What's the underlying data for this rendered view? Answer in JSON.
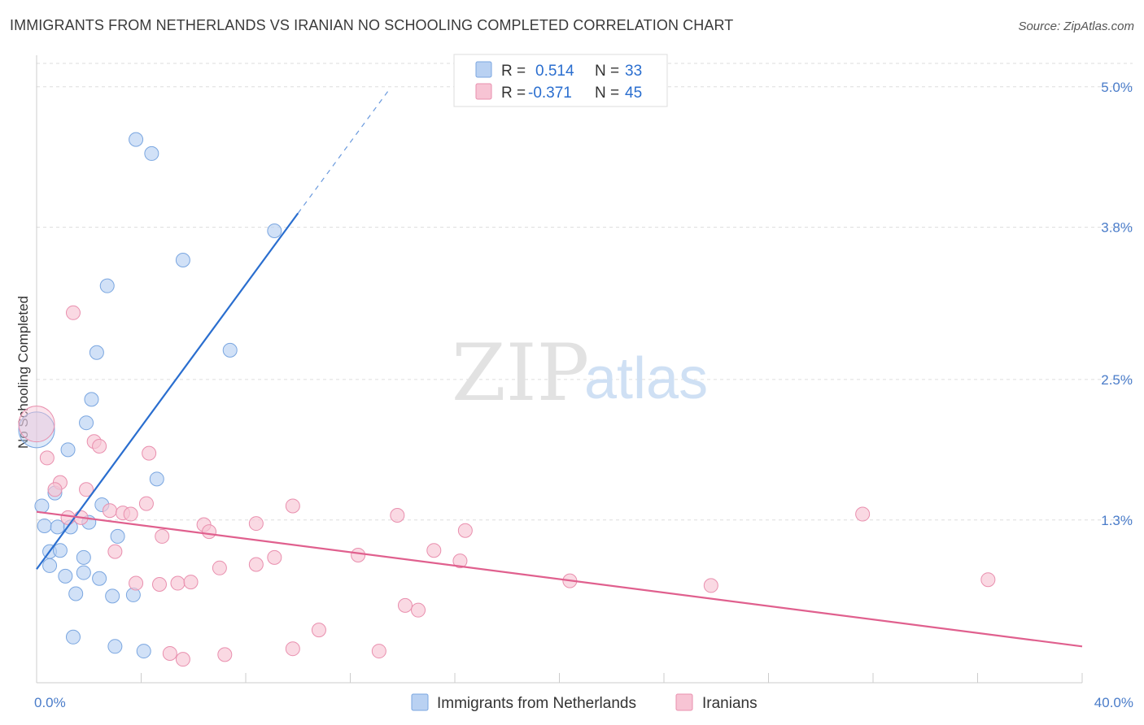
{
  "title": "IMMIGRANTS FROM NETHERLANDS VS IRANIAN NO SCHOOLING COMPLETED CORRELATION CHART",
  "source": "Source: ZipAtlas.com",
  "watermark": {
    "zip": "ZIP",
    "atlas": "atlas"
  },
  "colors": {
    "blue_fill": "#b9d1f2",
    "blue_stroke": "#7aa6e0",
    "blue_line": "#2a6ecf",
    "pink_fill": "#f7c4d4",
    "pink_stroke": "#e98fae",
    "pink_line": "#e0608e",
    "tick_text": "#4a7cc9",
    "grid": "#dddddd"
  },
  "legend": {
    "rows": [
      {
        "series": "blue",
        "r_label": "R =",
        "r_value": "0.514",
        "n_label": "N =",
        "n_value": "33"
      },
      {
        "series": "pink",
        "r_label": "R =",
        "r_value": "-0.371",
        "n_label": "N =",
        "n_value": "45"
      }
    ]
  },
  "chart_data": {
    "type": "scatter",
    "title": "IMMIGRANTS FROM NETHERLANDS VS IRANIAN NO SCHOOLING COMPLETED CORRELATION CHART",
    "xlabel": "",
    "ylabel": "No Schooling Completed",
    "xlim": [
      0,
      40
    ],
    "ylim": [
      0,
      5.2
    ],
    "x_tick_labels": [
      {
        "value": 0,
        "label": "0.0%"
      },
      {
        "value": 40,
        "label": "40.0%"
      }
    ],
    "y_ticks": [
      {
        "value": 1.3,
        "label": "1.3%"
      },
      {
        "value": 2.5,
        "label": "2.5%"
      },
      {
        "value": 3.8,
        "label": "3.8%"
      },
      {
        "value": 5.0,
        "label": "5.0%"
      }
    ],
    "grid": true,
    "series": [
      {
        "name": "Immigrants from Netherlands",
        "color": "blue",
        "r": 0.514,
        "n": 33,
        "trendline": {
          "x0": 0,
          "y0": 0.88,
          "x1": 10.0,
          "y1": 3.92,
          "dash_to_x": 13.5,
          "dash_to_y": 4.98
        },
        "points": [
          [
            3.8,
            4.55
          ],
          [
            4.4,
            4.43
          ],
          [
            9.1,
            3.77
          ],
          [
            5.6,
            3.52
          ],
          [
            2.7,
            3.3
          ],
          [
            7.4,
            2.75
          ],
          [
            2.3,
            2.73
          ],
          [
            2.1,
            2.33
          ],
          [
            1.9,
            2.13
          ],
          [
            0.0,
            2.07
          ],
          [
            1.2,
            1.9
          ],
          [
            4.6,
            1.65
          ],
          [
            0.7,
            1.53
          ],
          [
            0.2,
            1.42
          ],
          [
            2.5,
            1.43
          ],
          [
            0.3,
            1.25
          ],
          [
            0.8,
            1.24
          ],
          [
            1.3,
            1.24
          ],
          [
            2.0,
            1.28
          ],
          [
            3.1,
            1.16
          ],
          [
            0.5,
            1.03
          ],
          [
            0.9,
            1.04
          ],
          [
            1.8,
            0.98
          ],
          [
            0.5,
            0.91
          ],
          [
            1.1,
            0.82
          ],
          [
            1.8,
            0.85
          ],
          [
            2.4,
            0.8
          ],
          [
            1.5,
            0.67
          ],
          [
            2.9,
            0.65
          ],
          [
            3.7,
            0.66
          ],
          [
            1.4,
            0.3
          ],
          [
            3.0,
            0.22
          ],
          [
            4.1,
            0.18
          ]
        ]
      },
      {
        "name": "Iranians",
        "color": "pink",
        "r": -0.371,
        "n": 45,
        "trendline": {
          "x0": 0,
          "y0": 1.37,
          "x1": 40,
          "y1": 0.22
        },
        "points": [
          [
            1.4,
            3.07
          ],
          [
            0.0,
            2.12
          ],
          [
            0.4,
            1.83
          ],
          [
            2.2,
            1.97
          ],
          [
            2.4,
            1.93
          ],
          [
            4.3,
            1.87
          ],
          [
            0.9,
            1.62
          ],
          [
            0.7,
            1.56
          ],
          [
            1.9,
            1.56
          ],
          [
            4.2,
            1.44
          ],
          [
            9.8,
            1.42
          ],
          [
            2.8,
            1.38
          ],
          [
            3.3,
            1.36
          ],
          [
            3.6,
            1.35
          ],
          [
            1.2,
            1.32
          ],
          [
            1.7,
            1.32
          ],
          [
            13.8,
            1.34
          ],
          [
            31.6,
            1.35
          ],
          [
            6.4,
            1.26
          ],
          [
            8.4,
            1.27
          ],
          [
            6.6,
            1.2
          ],
          [
            4.8,
            1.16
          ],
          [
            16.4,
            1.21
          ],
          [
            3.0,
            1.03
          ],
          [
            9.1,
            0.98
          ],
          [
            12.3,
            1.0
          ],
          [
            15.2,
            1.04
          ],
          [
            16.2,
            0.95
          ],
          [
            7.0,
            0.89
          ],
          [
            8.4,
            0.92
          ],
          [
            3.8,
            0.76
          ],
          [
            4.7,
            0.75
          ],
          [
            5.4,
            0.76
          ],
          [
            5.9,
            0.77
          ],
          [
            20.4,
            0.78
          ],
          [
            25.8,
            0.74
          ],
          [
            36.4,
            0.79
          ],
          [
            14.1,
            0.57
          ],
          [
            14.6,
            0.53
          ],
          [
            10.8,
            0.36
          ],
          [
            9.8,
            0.2
          ],
          [
            13.1,
            0.18
          ],
          [
            5.1,
            0.16
          ],
          [
            7.2,
            0.15
          ],
          [
            5.6,
            0.11
          ]
        ]
      }
    ]
  },
  "bottom_legend": [
    {
      "series": "blue",
      "label": "Immigrants from Netherlands"
    },
    {
      "series": "pink",
      "label": "Iranians"
    }
  ]
}
